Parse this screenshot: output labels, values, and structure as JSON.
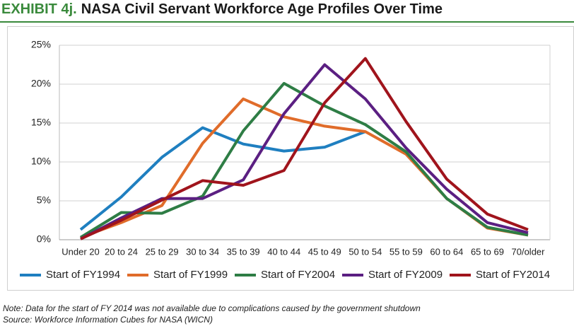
{
  "chart_data": {
    "type": "line",
    "exhibit": "EXHIBIT 4j.",
    "title": "NASA Civil Servant Workforce Age Profiles Over Time",
    "categories": [
      "Under 20",
      "20 to 24",
      "25 to 29",
      "30 to 34",
      "35 to 39",
      "40 to 44",
      "45 to 49",
      "50 to 54",
      "55 to 59",
      "60 to 64",
      "65 to 69",
      "70/older"
    ],
    "series": [
      {
        "name": "Start of FY1994",
        "color": "#1f7fc0",
        "values": [
          1.3,
          5.5,
          10.6,
          14.4,
          12.3,
          11.4,
          11.9,
          13.9,
          null,
          null,
          null,
          null
        ]
      },
      {
        "name": "Start of FY1999",
        "color": "#e06c2a",
        "values": [
          0.3,
          2.2,
          4.4,
          12.4,
          18.1,
          15.8,
          14.6,
          13.9,
          11.0,
          5.3,
          1.5,
          0.6
        ]
      },
      {
        "name": "Start of FY2004",
        "color": "#2e7d45",
        "values": [
          0.3,
          3.5,
          3.4,
          5.6,
          14.0,
          20.1,
          17.2,
          14.8,
          11.3,
          5.3,
          1.6,
          0.6
        ]
      },
      {
        "name": "Start of FY2009",
        "color": "#5b1f82",
        "values": [
          0.1,
          2.8,
          5.3,
          5.3,
          7.7,
          16.2,
          22.5,
          18.1,
          11.8,
          6.5,
          2.2,
          0.9
        ]
      },
      {
        "name": "Start of FY2014",
        "color": "#a0141c",
        "values": [
          0.1,
          2.5,
          5.1,
          7.6,
          7.0,
          8.9,
          17.6,
          23.3,
          15.2,
          7.8,
          3.3,
          1.3
        ]
      }
    ],
    "ylim": [
      0,
      25
    ],
    "yticks": [
      {
        "value": 0,
        "label": "0%"
      },
      {
        "value": 5,
        "label": "5%"
      },
      {
        "value": 10,
        "label": "10%"
      },
      {
        "value": 15,
        "label": "15%"
      },
      {
        "value": 20,
        "label": "20%"
      },
      {
        "value": 25,
        "label": "25%"
      }
    ],
    "grid": true,
    "legend": "bottom",
    "notes": [
      "Note: Data for the start of FY 2014 was not available due to complications caused by the government shutdown",
      "Source: Workforce Information Cubes for NASA (WICN)"
    ]
  }
}
